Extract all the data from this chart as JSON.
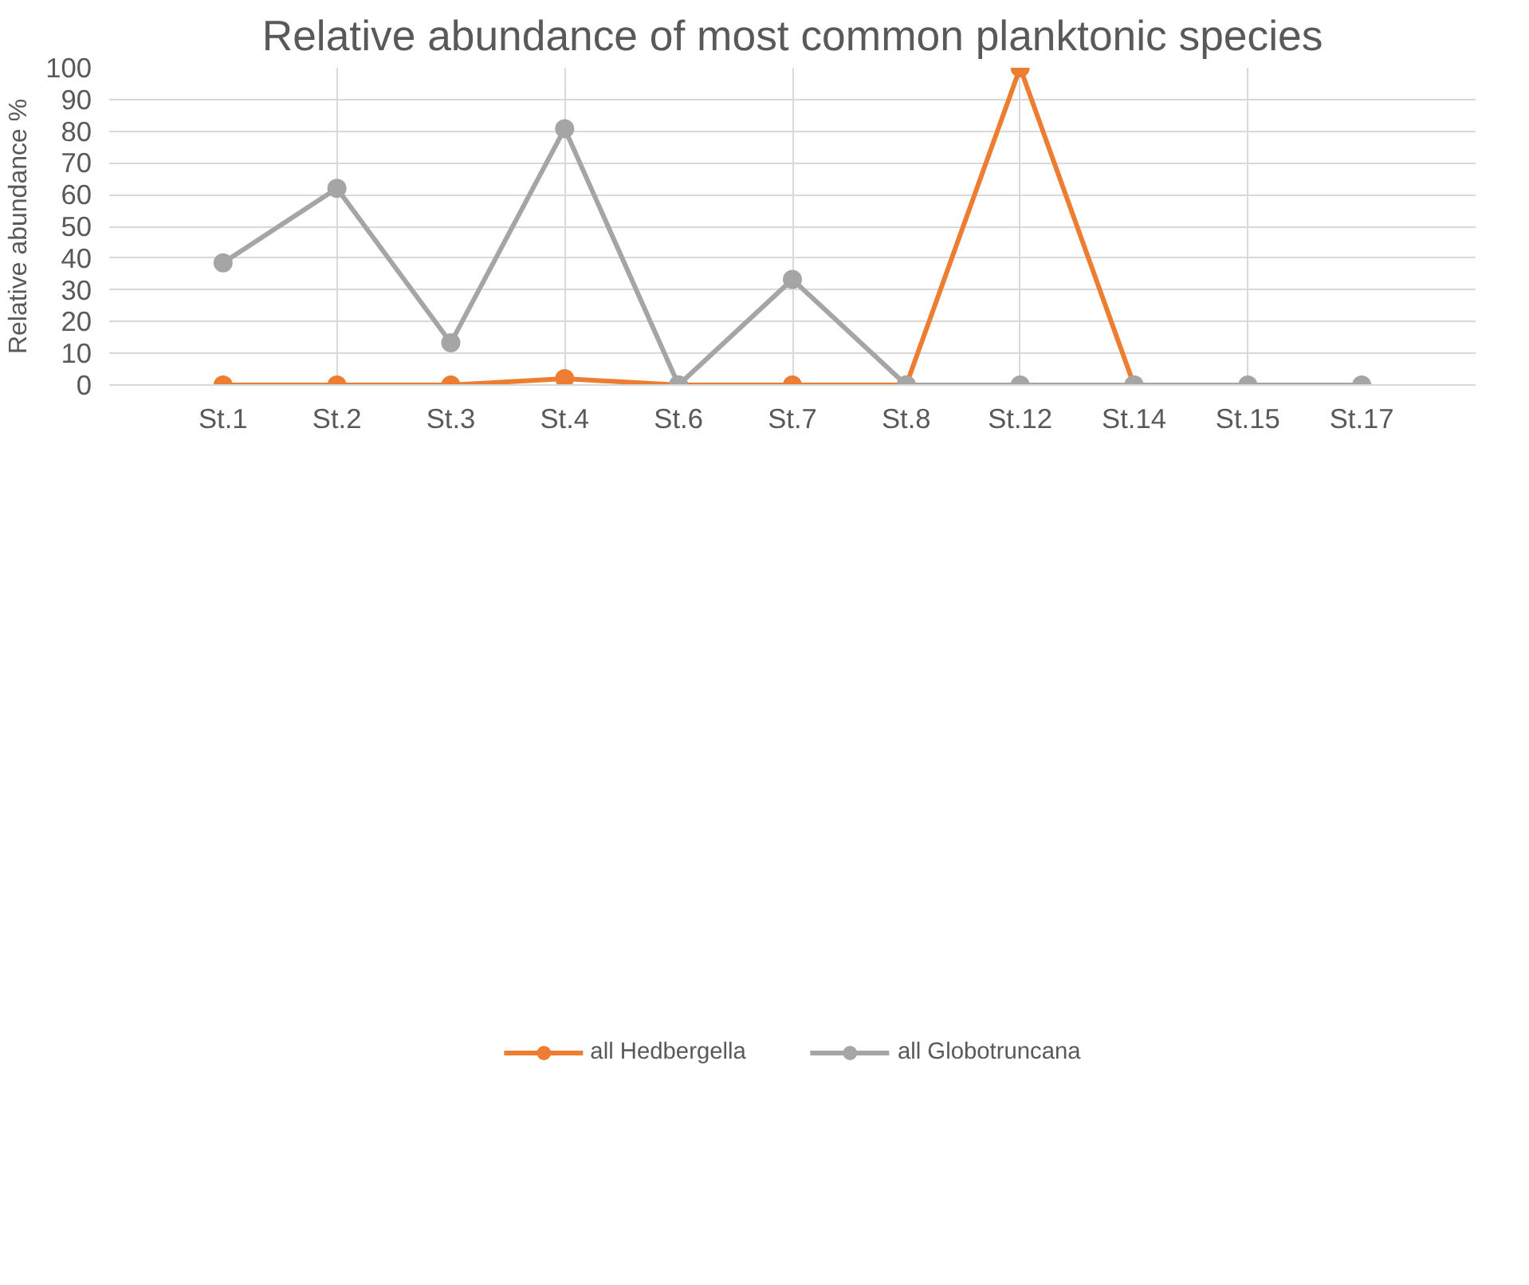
{
  "chart_data": {
    "type": "line",
    "title": "Relative abundance of most common planktonic species",
    "ylabel": "Relative abundance %",
    "categories": [
      "St.1",
      "St.2",
      "St.3",
      "St.4",
      "St.6",
      "St.7",
      "St.8",
      "St.12",
      "St.14",
      "St.15",
      "St.17"
    ],
    "series": [
      {
        "name": "all Hedbergella",
        "color": "#ed7d31",
        "values": [
          0,
          0,
          0,
          2,
          0,
          0,
          0,
          100,
          0,
          null,
          null
        ]
      },
      {
        "name": "all Globotruncana",
        "color": "#a5a5a5",
        "values": [
          38.5,
          62,
          13.3,
          80.8,
          0,
          33.3,
          0,
          0,
          0,
          0,
          0
        ]
      }
    ],
    "ylim": [
      0,
      100
    ],
    "yticks": [
      0,
      10,
      20,
      30,
      40,
      50,
      60,
      70,
      80,
      90,
      100
    ],
    "grid": true,
    "legend": "bottom",
    "marker": "circle",
    "line_style": "solid"
  }
}
